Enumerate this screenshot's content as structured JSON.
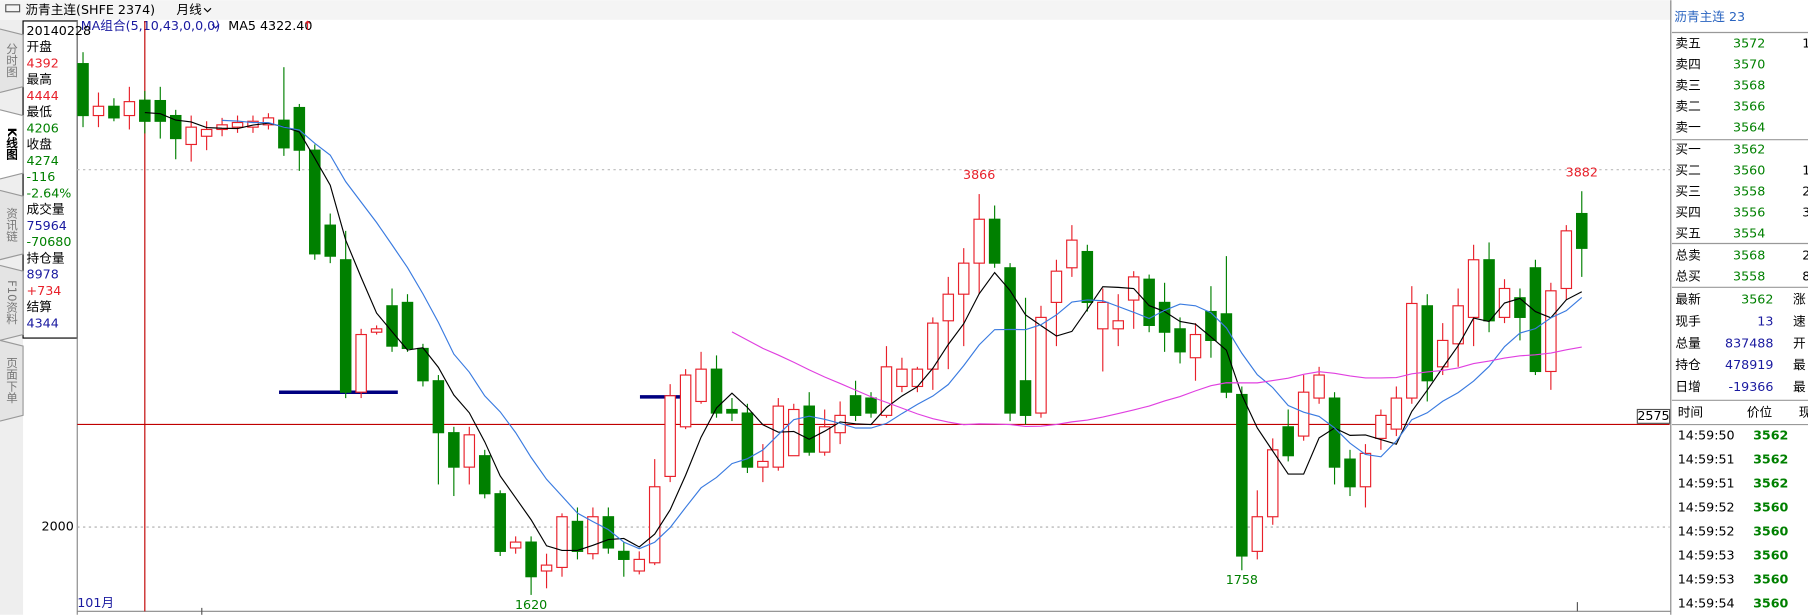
{
  "header": {
    "symbol": "沥青主连(SHFE 2374)",
    "period": "月线",
    "ma_group": "MA组合(5,10,43,0,0,0)",
    "ma5": "MA5 4322.40",
    "ma5_arrow": "↑"
  },
  "tabs": [
    "分时图",
    "K线图",
    "资讯链",
    "F10资料",
    "页面下单"
  ],
  "info_panel": [
    {
      "text": "20140228",
      "color": "#000000"
    },
    {
      "text": "开盘",
      "color": "#000000"
    },
    {
      "text": "4392",
      "color": "#e8202a"
    },
    {
      "text": "最高",
      "color": "#000000"
    },
    {
      "text": "4444",
      "color": "#e8202a"
    },
    {
      "text": "最低",
      "color": "#000000"
    },
    {
      "text": "4206",
      "color": "#008000"
    },
    {
      "text": "收盘",
      "color": "#000000"
    },
    {
      "text": "4274",
      "color": "#008000"
    },
    {
      "text": "-116",
      "color": "#008000"
    },
    {
      "text": "-2.64%",
      "color": "#008000"
    },
    {
      "text": "成交量",
      "color": "#000000"
    },
    {
      "text": "75964",
      "color": "#1a1aa0"
    },
    {
      "text": "-70680",
      "color": "#008000"
    },
    {
      "text": "持仓量",
      "color": "#000000"
    },
    {
      "text": "8978",
      "color": "#1a1aa0"
    },
    {
      "text": "+734",
      "color": "#e8202a"
    },
    {
      "text": "结算",
      "color": "#000000"
    },
    {
      "text": "4344",
      "color": "#1a1aa0"
    }
  ],
  "chart_data": {
    "type": "candlestick",
    "x_label": "101月",
    "ylim": [
      1528,
      4836
    ],
    "yticks": [
      2000
    ],
    "ref_line": 2575,
    "grid": true,
    "up_color": "#e8202a",
    "down_color": "#008000",
    "cursor_index": 4,
    "ma": [
      {
        "period": 5,
        "color": "#000000"
      },
      {
        "period": 10,
        "color": "#3a7be0"
      },
      {
        "period": 43,
        "color": "#e040e0"
      }
    ],
    "labeled_highs": [
      58,
      97
    ],
    "labeled_lows": [
      29,
      75
    ],
    "open": [
      4597,
      4306,
      4358,
      4306,
      4392,
      4390,
      4306,
      4144,
      4190,
      4228,
      4241,
      4241,
      4254,
      4280,
      4351,
      4112,
      3692,
      3498,
      2756,
      3092,
      3240,
      3259,
      3001,
      2820,
      2529,
      2336,
      2400,
      2187,
      1883,
      1916,
      1754,
      1774,
      2032,
      1851,
      2058,
      1864,
      1754,
      1800,
      2284,
      2562,
      2704,
      2885,
      2659,
      2639,
      2336,
      2336,
      2400,
      2678,
      2420,
      2529,
      2736,
      2723,
      2626,
      2788,
      2788,
      2885,
      3156,
      3305,
      3479,
      3725,
      3453,
      2820,
      2639,
      3259,
      3453,
      3544,
      3111,
      3111,
      3272,
      3389,
      3259,
      3111,
      2949,
      3208,
      3195,
      2743,
      1864,
      2058,
      2562,
      2510,
      2723,
      2723,
      2381,
      2226,
      2497,
      2549,
      2723,
      3240,
      2898,
      3027,
      3175,
      3498,
      3175,
      3285,
      3453,
      2872,
      3337,
      3757
    ],
    "high": [
      4661,
      4435,
      4403,
      4467,
      4444,
      4467,
      4338,
      4306,
      4274,
      4293,
      4306,
      4306,
      4319,
      4577,
      4371,
      4144,
      3757,
      3660,
      3111,
      3130,
      3337,
      3305,
      3027,
      2852,
      2562,
      2562,
      2433,
      2206,
      1948,
      1948,
      1851,
      2077,
      2110,
      2110,
      2110,
      1916,
      1864,
      2381,
      2801,
      2885,
      2982,
      2962,
      2723,
      2691,
      2465,
      2723,
      2691,
      2756,
      2659,
      2704,
      2820,
      2756,
      3014,
      2949,
      2898,
      3175,
      3402,
      3563,
      3866,
      3802,
      3479,
      3285,
      3240,
      3498,
      3692,
      3582,
      3337,
      3305,
      3434,
      3415,
      3369,
      3175,
      3143,
      3350,
      3518,
      2788,
      2206,
      2497,
      2659,
      2852,
      2898,
      2756,
      2433,
      2465,
      2659,
      2788,
      3350,
      3305,
      3143,
      3337,
      3582,
      3595,
      3389,
      3337,
      3498,
      3369,
      3692,
      3882
    ],
    "low": [
      4241,
      4241,
      4274,
      4228,
      4206,
      4177,
      4061,
      4048,
      4112,
      4190,
      4209,
      4209,
      4228,
      4080,
      3996,
      3498,
      3479,
      2723,
      2723,
      3079,
      2982,
      2982,
      2788,
      2239,
      2174,
      2239,
      2161,
      1838,
      1851,
      1620,
      1657,
      1722,
      1819,
      1819,
      1851,
      1722,
      1735,
      1787,
      2252,
      2549,
      2691,
      2613,
      2594,
      2303,
      2252,
      2316,
      2400,
      2400,
      2400,
      2465,
      2594,
      2613,
      2613,
      2756,
      2756,
      2769,
      2885,
      3014,
      3305,
      3453,
      2594,
      2575,
      2613,
      3014,
      3402,
      3208,
      2872,
      3014,
      3111,
      3092,
      2982,
      2917,
      2820,
      2949,
      2723,
      1758,
      1819,
      2013,
      2368,
      2484,
      2691,
      2239,
      2174,
      2110,
      2433,
      2510,
      2691,
      2704,
      2852,
      2898,
      3014,
      3092,
      3143,
      3046,
      2852,
      2769,
      3272,
      3402
    ],
    "close": [
      4306,
      4358,
      4293,
      4384,
      4274,
      4274,
      4177,
      4241,
      4228,
      4254,
      4267,
      4274,
      4293,
      4125,
      4112,
      3531,
      3518,
      2756,
      3079,
      3111,
      3014,
      3001,
      2820,
      2529,
      2336,
      2517,
      2187,
      1864,
      1916,
      1722,
      1787,
      2058,
      1864,
      2058,
      1883,
      1819,
      1819,
      2226,
      2736,
      2852,
      2885,
      2639,
      2639,
      2336,
      2368,
      2678,
      2659,
      2420,
      2562,
      2626,
      2626,
      2639,
      2898,
      2885,
      2885,
      3143,
      3305,
      3479,
      3725,
      3479,
      2639,
      2626,
      3175,
      3434,
      3608,
      3259,
      3259,
      3156,
      3402,
      3130,
      3092,
      2982,
      3079,
      3046,
      2756,
      1838,
      2058,
      2433,
      2400,
      2756,
      2852,
      2336,
      2226,
      2413,
      2626,
      2723,
      3253,
      2820,
      3046,
      3240,
      3498,
      3156,
      3337,
      3175,
      2872,
      3324,
      3660,
      3562
    ]
  },
  "quote": {
    "title": "沥青主连 23",
    "asks": [
      {
        "label": "卖五",
        "price": 3572,
        "vol": "1"
      },
      {
        "label": "卖四",
        "price": 3570
      },
      {
        "label": "卖三",
        "price": 3568
      },
      {
        "label": "卖二",
        "price": 3566
      },
      {
        "label": "卖一",
        "price": 3564
      }
    ],
    "bids": [
      {
        "label": "买一",
        "price": 3562
      },
      {
        "label": "买二",
        "price": 3560,
        "vol": "1"
      },
      {
        "label": "买三",
        "price": 3558,
        "vol": "2"
      },
      {
        "label": "买四",
        "price": 3556,
        "vol": "3"
      },
      {
        "label": "买五",
        "price": 3554
      }
    ],
    "totals": [
      {
        "label": "总卖",
        "price": 3568,
        "vol": "2"
      },
      {
        "label": "总买",
        "price": 3558,
        "vol": "8"
      }
    ],
    "stats": [
      {
        "label": "最新",
        "value": 3562,
        "color": "#008000",
        "more": "涨"
      },
      {
        "label": "现手",
        "value": 13,
        "color": "#1a1aa0",
        "more": "速"
      },
      {
        "label": "总量",
        "value": 837488,
        "color": "#1a1aa0",
        "more": "开"
      },
      {
        "label": "持仓",
        "value": 478919,
        "color": "#1a1aa0",
        "more": "最"
      },
      {
        "label": "日增",
        "value": -19366,
        "color": "#1a1aa0",
        "more": "最"
      }
    ]
  },
  "trades": {
    "headers": [
      "时间",
      "价位",
      "现"
    ],
    "rows": [
      [
        "14:59:50",
        3562
      ],
      [
        "14:59:51",
        3562
      ],
      [
        "14:59:51",
        3562
      ],
      [
        "14:59:52",
        3560
      ],
      [
        "14:59:52",
        3560
      ],
      [
        "14:59:53",
        3560
      ],
      [
        "14:59:53",
        3560
      ],
      [
        "14:59:54",
        3560
      ]
    ]
  }
}
